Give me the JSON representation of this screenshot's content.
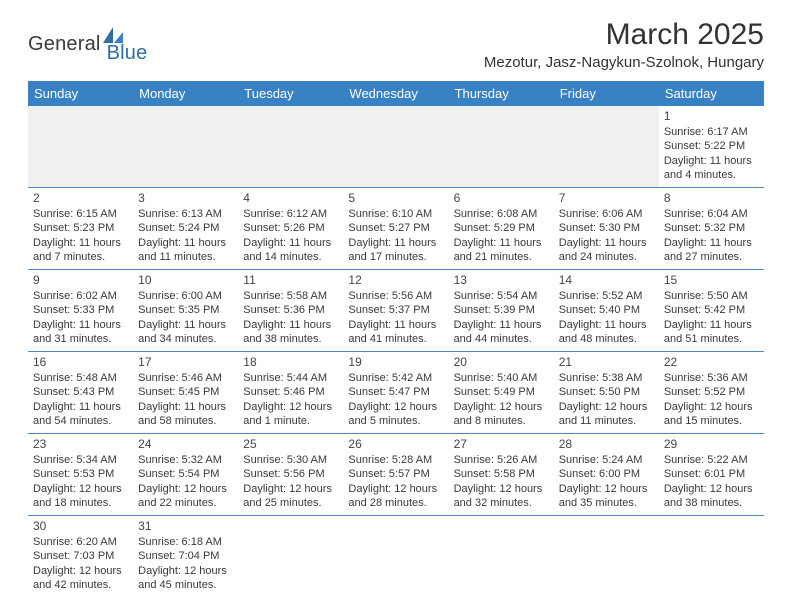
{
  "brand": {
    "part1": "General",
    "part2": "Blue"
  },
  "title": "March 2025",
  "location": "Mezotur, Jasz-Nagykun-Szolnok, Hungary",
  "colors": {
    "header_bg": "#3881c4",
    "header_text": "#ffffff",
    "cell_border": "#4a89c2",
    "empty_bg": "#f0f0f0",
    "text": "#3a3a3a",
    "logo_dark": "#3a3a3a",
    "logo_blue": "#2f6fa8"
  },
  "weekdays": [
    "Sunday",
    "Monday",
    "Tuesday",
    "Wednesday",
    "Thursday",
    "Friday",
    "Saturday"
  ],
  "grid": [
    [
      {
        "empty": true
      },
      {
        "empty": true
      },
      {
        "empty": true
      },
      {
        "empty": true
      },
      {
        "empty": true
      },
      {
        "empty": true
      },
      {
        "day": "1",
        "sunrise": "Sunrise: 6:17 AM",
        "sunset": "Sunset: 5:22 PM",
        "daylight1": "Daylight: 11 hours",
        "daylight2": "and 4 minutes."
      }
    ],
    [
      {
        "day": "2",
        "sunrise": "Sunrise: 6:15 AM",
        "sunset": "Sunset: 5:23 PM",
        "daylight1": "Daylight: 11 hours",
        "daylight2": "and 7 minutes."
      },
      {
        "day": "3",
        "sunrise": "Sunrise: 6:13 AM",
        "sunset": "Sunset: 5:24 PM",
        "daylight1": "Daylight: 11 hours",
        "daylight2": "and 11 minutes."
      },
      {
        "day": "4",
        "sunrise": "Sunrise: 6:12 AM",
        "sunset": "Sunset: 5:26 PM",
        "daylight1": "Daylight: 11 hours",
        "daylight2": "and 14 minutes."
      },
      {
        "day": "5",
        "sunrise": "Sunrise: 6:10 AM",
        "sunset": "Sunset: 5:27 PM",
        "daylight1": "Daylight: 11 hours",
        "daylight2": "and 17 minutes."
      },
      {
        "day": "6",
        "sunrise": "Sunrise: 6:08 AM",
        "sunset": "Sunset: 5:29 PM",
        "daylight1": "Daylight: 11 hours",
        "daylight2": "and 21 minutes."
      },
      {
        "day": "7",
        "sunrise": "Sunrise: 6:06 AM",
        "sunset": "Sunset: 5:30 PM",
        "daylight1": "Daylight: 11 hours",
        "daylight2": "and 24 minutes."
      },
      {
        "day": "8",
        "sunrise": "Sunrise: 6:04 AM",
        "sunset": "Sunset: 5:32 PM",
        "daylight1": "Daylight: 11 hours",
        "daylight2": "and 27 minutes."
      }
    ],
    [
      {
        "day": "9",
        "sunrise": "Sunrise: 6:02 AM",
        "sunset": "Sunset: 5:33 PM",
        "daylight1": "Daylight: 11 hours",
        "daylight2": "and 31 minutes."
      },
      {
        "day": "10",
        "sunrise": "Sunrise: 6:00 AM",
        "sunset": "Sunset: 5:35 PM",
        "daylight1": "Daylight: 11 hours",
        "daylight2": "and 34 minutes."
      },
      {
        "day": "11",
        "sunrise": "Sunrise: 5:58 AM",
        "sunset": "Sunset: 5:36 PM",
        "daylight1": "Daylight: 11 hours",
        "daylight2": "and 38 minutes."
      },
      {
        "day": "12",
        "sunrise": "Sunrise: 5:56 AM",
        "sunset": "Sunset: 5:37 PM",
        "daylight1": "Daylight: 11 hours",
        "daylight2": "and 41 minutes."
      },
      {
        "day": "13",
        "sunrise": "Sunrise: 5:54 AM",
        "sunset": "Sunset: 5:39 PM",
        "daylight1": "Daylight: 11 hours",
        "daylight2": "and 44 minutes."
      },
      {
        "day": "14",
        "sunrise": "Sunrise: 5:52 AM",
        "sunset": "Sunset: 5:40 PM",
        "daylight1": "Daylight: 11 hours",
        "daylight2": "and 48 minutes."
      },
      {
        "day": "15",
        "sunrise": "Sunrise: 5:50 AM",
        "sunset": "Sunset: 5:42 PM",
        "daylight1": "Daylight: 11 hours",
        "daylight2": "and 51 minutes."
      }
    ],
    [
      {
        "day": "16",
        "sunrise": "Sunrise: 5:48 AM",
        "sunset": "Sunset: 5:43 PM",
        "daylight1": "Daylight: 11 hours",
        "daylight2": "and 54 minutes."
      },
      {
        "day": "17",
        "sunrise": "Sunrise: 5:46 AM",
        "sunset": "Sunset: 5:45 PM",
        "daylight1": "Daylight: 11 hours",
        "daylight2": "and 58 minutes."
      },
      {
        "day": "18",
        "sunrise": "Sunrise: 5:44 AM",
        "sunset": "Sunset: 5:46 PM",
        "daylight1": "Daylight: 12 hours",
        "daylight2": "and 1 minute."
      },
      {
        "day": "19",
        "sunrise": "Sunrise: 5:42 AM",
        "sunset": "Sunset: 5:47 PM",
        "daylight1": "Daylight: 12 hours",
        "daylight2": "and 5 minutes."
      },
      {
        "day": "20",
        "sunrise": "Sunrise: 5:40 AM",
        "sunset": "Sunset: 5:49 PM",
        "daylight1": "Daylight: 12 hours",
        "daylight2": "and 8 minutes."
      },
      {
        "day": "21",
        "sunrise": "Sunrise: 5:38 AM",
        "sunset": "Sunset: 5:50 PM",
        "daylight1": "Daylight: 12 hours",
        "daylight2": "and 11 minutes."
      },
      {
        "day": "22",
        "sunrise": "Sunrise: 5:36 AM",
        "sunset": "Sunset: 5:52 PM",
        "daylight1": "Daylight: 12 hours",
        "daylight2": "and 15 minutes."
      }
    ],
    [
      {
        "day": "23",
        "sunrise": "Sunrise: 5:34 AM",
        "sunset": "Sunset: 5:53 PM",
        "daylight1": "Daylight: 12 hours",
        "daylight2": "and 18 minutes."
      },
      {
        "day": "24",
        "sunrise": "Sunrise: 5:32 AM",
        "sunset": "Sunset: 5:54 PM",
        "daylight1": "Daylight: 12 hours",
        "daylight2": "and 22 minutes."
      },
      {
        "day": "25",
        "sunrise": "Sunrise: 5:30 AM",
        "sunset": "Sunset: 5:56 PM",
        "daylight1": "Daylight: 12 hours",
        "daylight2": "and 25 minutes."
      },
      {
        "day": "26",
        "sunrise": "Sunrise: 5:28 AM",
        "sunset": "Sunset: 5:57 PM",
        "daylight1": "Daylight: 12 hours",
        "daylight2": "and 28 minutes."
      },
      {
        "day": "27",
        "sunrise": "Sunrise: 5:26 AM",
        "sunset": "Sunset: 5:58 PM",
        "daylight1": "Daylight: 12 hours",
        "daylight2": "and 32 minutes."
      },
      {
        "day": "28",
        "sunrise": "Sunrise: 5:24 AM",
        "sunset": "Sunset: 6:00 PM",
        "daylight1": "Daylight: 12 hours",
        "daylight2": "and 35 minutes."
      },
      {
        "day": "29",
        "sunrise": "Sunrise: 5:22 AM",
        "sunset": "Sunset: 6:01 PM",
        "daylight1": "Daylight: 12 hours",
        "daylight2": "and 38 minutes."
      }
    ],
    [
      {
        "day": "30",
        "sunrise": "Sunrise: 6:20 AM",
        "sunset": "Sunset: 7:03 PM",
        "daylight1": "Daylight: 12 hours",
        "daylight2": "and 42 minutes."
      },
      {
        "day": "31",
        "sunrise": "Sunrise: 6:18 AM",
        "sunset": "Sunset: 7:04 PM",
        "daylight1": "Daylight: 12 hours",
        "daylight2": "and 45 minutes."
      },
      {
        "empty": true,
        "noborder": true
      },
      {
        "empty": true,
        "noborder": true
      },
      {
        "empty": true,
        "noborder": true
      },
      {
        "empty": true,
        "noborder": true
      },
      {
        "empty": true,
        "noborder": true
      }
    ]
  ]
}
